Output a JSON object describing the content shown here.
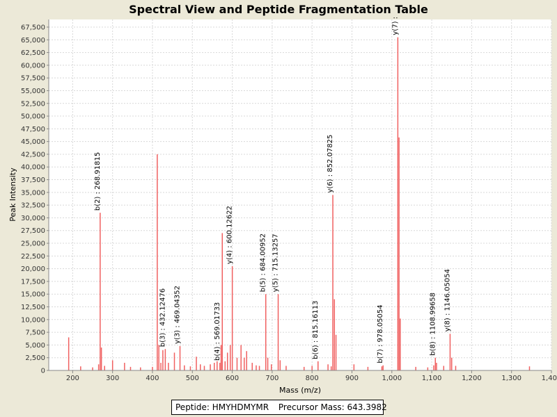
{
  "chart_data": {
    "type": "bar",
    "title": "Spectral View and Peptide Fragmentation Table",
    "xlabel": "Mass (m/z)",
    "ylabel": "Peak Intensity",
    "xlim": [
      140,
      1400
    ],
    "ylim": [
      0,
      69000
    ],
    "xticks": [
      200,
      300,
      400,
      500,
      600,
      700,
      800,
      900,
      1000,
      1100,
      1200,
      1300,
      1400
    ],
    "xtick_labels": [
      "200",
      "300",
      "400",
      "500",
      "600",
      "700",
      "800",
      "900",
      "1,000",
      "1,100",
      "1,200",
      "1,300",
      "1,400"
    ],
    "yticks": [
      0,
      2500,
      5000,
      7500,
      10000,
      12500,
      15000,
      17500,
      20000,
      22500,
      25000,
      27500,
      30000,
      32500,
      35000,
      37500,
      40000,
      42500,
      45000,
      47500,
      50000,
      52500,
      55000,
      57500,
      60000,
      62500,
      65000,
      67500
    ],
    "ytick_labels": [
      "0",
      "2,500",
      "5,000",
      "7,500",
      "10,000",
      "12,500",
      "15,000",
      "17,500",
      "20,000",
      "22,500",
      "25,000",
      "27,500",
      "30,000",
      "32,500",
      "35,000",
      "37,500",
      "40,000",
      "42,500",
      "45,000",
      "47,500",
      "50,000",
      "52,500",
      "55,000",
      "57,500",
      "60,000",
      "62,500",
      "65,000",
      "67,500"
    ],
    "grid": true,
    "color": "#F06060",
    "peaks": [
      {
        "mz": 190,
        "intensity": 6500
      },
      {
        "mz": 220,
        "intensity": 800
      },
      {
        "mz": 250,
        "intensity": 600
      },
      {
        "mz": 265,
        "intensity": 1200
      },
      {
        "mz": 268.9,
        "intensity": 31000
      },
      {
        "mz": 272,
        "intensity": 4500
      },
      {
        "mz": 280,
        "intensity": 900
      },
      {
        "mz": 300,
        "intensity": 2000
      },
      {
        "mz": 330,
        "intensity": 1500
      },
      {
        "mz": 345,
        "intensity": 700
      },
      {
        "mz": 370,
        "intensity": 600
      },
      {
        "mz": 400,
        "intensity": 700
      },
      {
        "mz": 412,
        "intensity": 42500
      },
      {
        "mz": 416,
        "intensity": 5000
      },
      {
        "mz": 421,
        "intensity": 1500
      },
      {
        "mz": 426,
        "intensity": 4000
      },
      {
        "mz": 432.1,
        "intensity": 4200
      },
      {
        "mz": 440,
        "intensity": 1500
      },
      {
        "mz": 455,
        "intensity": 3500
      },
      {
        "mz": 469,
        "intensity": 4800
      },
      {
        "mz": 480,
        "intensity": 1000
      },
      {
        "mz": 495,
        "intensity": 800
      },
      {
        "mz": 510,
        "intensity": 2700
      },
      {
        "mz": 520,
        "intensity": 1200
      },
      {
        "mz": 530,
        "intensity": 900
      },
      {
        "mz": 545,
        "intensity": 1200
      },
      {
        "mz": 555,
        "intensity": 1500
      },
      {
        "mz": 562,
        "intensity": 1800
      },
      {
        "mz": 569,
        "intensity": 1500
      },
      {
        "mz": 572,
        "intensity": 5000
      },
      {
        "mz": 575,
        "intensity": 27000
      },
      {
        "mz": 582,
        "intensity": 1800
      },
      {
        "mz": 588,
        "intensity": 3500
      },
      {
        "mz": 595,
        "intensity": 5000
      },
      {
        "mz": 600.1,
        "intensity": 20500
      },
      {
        "mz": 612,
        "intensity": 2500
      },
      {
        "mz": 622,
        "intensity": 5000
      },
      {
        "mz": 630,
        "intensity": 2500
      },
      {
        "mz": 636,
        "intensity": 3800
      },
      {
        "mz": 650,
        "intensity": 1500
      },
      {
        "mz": 660,
        "intensity": 1000
      },
      {
        "mz": 668,
        "intensity": 900
      },
      {
        "mz": 684,
        "intensity": 15000
      },
      {
        "mz": 689,
        "intensity": 2500
      },
      {
        "mz": 698,
        "intensity": 1200
      },
      {
        "mz": 715.1,
        "intensity": 15000
      },
      {
        "mz": 720,
        "intensity": 2000
      },
      {
        "mz": 735,
        "intensity": 900
      },
      {
        "mz": 780,
        "intensity": 700
      },
      {
        "mz": 800,
        "intensity": 900
      },
      {
        "mz": 815,
        "intensity": 1800
      },
      {
        "mz": 840,
        "intensity": 1200
      },
      {
        "mz": 848,
        "intensity": 800
      },
      {
        "mz": 852.1,
        "intensity": 34500
      },
      {
        "mz": 856,
        "intensity": 14000
      },
      {
        "mz": 860,
        "intensity": 7000
      },
      {
        "mz": 905,
        "intensity": 1200
      },
      {
        "mz": 940,
        "intensity": 700
      },
      {
        "mz": 975,
        "intensity": 800
      },
      {
        "mz": 978,
        "intensity": 1000
      },
      {
        "mz": 1015,
        "intensity": 65500
      },
      {
        "mz": 1018,
        "intensity": 45800
      },
      {
        "mz": 1021,
        "intensity": 10200
      },
      {
        "mz": 1060,
        "intensity": 700
      },
      {
        "mz": 1090,
        "intensity": 600
      },
      {
        "mz": 1105,
        "intensity": 1000
      },
      {
        "mz": 1109,
        "intensity": 2500
      },
      {
        "mz": 1112,
        "intensity": 1500
      },
      {
        "mz": 1130,
        "intensity": 900
      },
      {
        "mz": 1146,
        "intensity": 7200
      },
      {
        "mz": 1150,
        "intensity": 2500
      },
      {
        "mz": 1160,
        "intensity": 900
      },
      {
        "mz": 1345,
        "intensity": 800
      }
    ],
    "annotations": [
      {
        "label": "b(2) : 268.91815",
        "mz": 268.9,
        "intensity": 31000
      },
      {
        "label": "b(3) : 432.12476",
        "mz": 432.1,
        "intensity": 4200
      },
      {
        "label": "y(3) : 469.04352",
        "mz": 469,
        "intensity": 4800
      },
      {
        "label": "b(4) : 569.01733",
        "mz": 569,
        "intensity": 1500
      },
      {
        "label": "y(4) : 600.12622",
        "mz": 600.1,
        "intensity": 20500
      },
      {
        "label": "b(5) : 684.00952",
        "mz": 684,
        "intensity": 15000
      },
      {
        "label": "y(5) : 715.13257",
        "mz": 715.1,
        "intensity": 15000
      },
      {
        "label": "b(6) : 815.16113",
        "mz": 815,
        "intensity": 1800
      },
      {
        "label": "y(6) : 852.07825",
        "mz": 852.1,
        "intensity": 34500
      },
      {
        "label": "b(7) : 978.05054",
        "mz": 978,
        "intensity": 1000
      },
      {
        "label": "y(7) :",
        "mz": 1015,
        "intensity": 65500
      },
      {
        "label": "b(8) : 1108.99658",
        "mz": 1109,
        "intensity": 2500
      },
      {
        "label": "y(8) : 1146.05054",
        "mz": 1146,
        "intensity": 7200
      }
    ]
  },
  "legend": {
    "peptide_label": "Peptide: HMYHDMYMR",
    "precursor_label": "Precursor Mass: 643.3982"
  }
}
